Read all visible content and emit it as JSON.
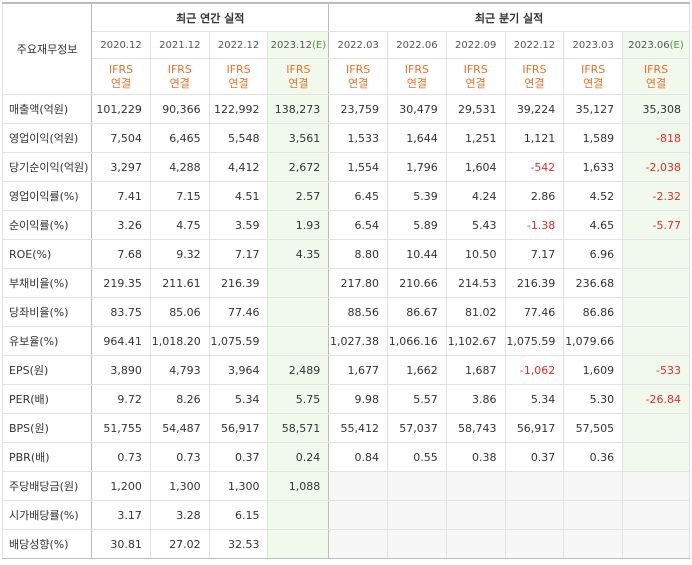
{
  "header": {
    "corner": "주요재무정보",
    "annual_title": "최근 연간 실적",
    "quarter_title": "최근 분기 실적",
    "periods": [
      {
        "date": "2020.12",
        "est": "",
        "acct": [
          "IFRS",
          "연결"
        ]
      },
      {
        "date": "2021.12",
        "est": "",
        "acct": [
          "IFRS",
          "연결"
        ]
      },
      {
        "date": "2022.12",
        "est": "",
        "acct": [
          "IFRS",
          "연결"
        ]
      },
      {
        "date": "2023.12",
        "est": "(E)",
        "acct": [
          "IFRS",
          "연결"
        ]
      },
      {
        "date": "2022.03",
        "est": "",
        "acct": [
          "IFRS",
          "연결"
        ]
      },
      {
        "date": "2022.06",
        "est": "",
        "acct": [
          "IFRS",
          "연결"
        ]
      },
      {
        "date": "2022.09",
        "est": "",
        "acct": [
          "IFRS",
          "연결"
        ]
      },
      {
        "date": "2022.12",
        "est": "",
        "acct": [
          "IFRS",
          "연결"
        ]
      },
      {
        "date": "2023.03",
        "est": "",
        "acct": [
          "IFRS",
          "연결"
        ]
      },
      {
        "date": "2023.06",
        "est": "(E)",
        "acct": [
          "IFRS",
          "연결"
        ]
      }
    ]
  },
  "rows": [
    {
      "label": "매출액(억원)",
      "values": [
        "101,229",
        "90,366",
        "122,992",
        "138,273",
        "23,759",
        "30,479",
        "29,531",
        "39,224",
        "35,127",
        "35,308"
      ]
    },
    {
      "label": "영업이익(억원)",
      "values": [
        "7,504",
        "6,465",
        "5,548",
        "3,561",
        "1,533",
        "1,644",
        "1,251",
        "1,121",
        "1,589",
        "-818"
      ]
    },
    {
      "label": "당기순이익(억원)",
      "values": [
        "3,297",
        "4,288",
        "4,412",
        "2,672",
        "1,554",
        "1,796",
        "1,604",
        "-542",
        "1,633",
        "-2,038"
      ]
    },
    {
      "label": "영업이익률(%)",
      "values": [
        "7.41",
        "7.15",
        "4.51",
        "2.57",
        "6.45",
        "5.39",
        "4.24",
        "2.86",
        "4.52",
        "-2.32"
      ]
    },
    {
      "label": "순이익률(%)",
      "values": [
        "3.26",
        "4.75",
        "3.59",
        "1.93",
        "6.54",
        "5.89",
        "5.43",
        "-1.38",
        "4.65",
        "-5.77"
      ]
    },
    {
      "label": "ROE(%)",
      "values": [
        "7.68",
        "9.32",
        "7.17",
        "4.35",
        "8.80",
        "10.44",
        "10.50",
        "7.17",
        "6.96",
        ""
      ]
    },
    {
      "label": "부채비율(%)",
      "values": [
        "219.35",
        "211.61",
        "216.39",
        "",
        "217.80",
        "210.66",
        "214.53",
        "216.39",
        "236.68",
        ""
      ]
    },
    {
      "label": "당좌비율(%)",
      "values": [
        "83.75",
        "85.06",
        "77.46",
        "",
        "88.56",
        "86.67",
        "81.02",
        "77.46",
        "86.86",
        ""
      ]
    },
    {
      "label": "유보율(%)",
      "values": [
        "964.41",
        "1,018.20",
        "1,075.59",
        "",
        "1,027.38",
        "1,066.16",
        "1,102.67",
        "1,075.59",
        "1,079.66",
        ""
      ]
    },
    {
      "label": "EPS(원)",
      "values": [
        "3,890",
        "4,793",
        "3,964",
        "2,489",
        "1,677",
        "1,662",
        "1,687",
        "-1,062",
        "1,609",
        "-533"
      ]
    },
    {
      "label": "PER(배)",
      "values": [
        "9.72",
        "8.26",
        "5.34",
        "5.75",
        "9.98",
        "5.57",
        "3.86",
        "5.34",
        "5.30",
        "-26.84"
      ]
    },
    {
      "label": "BPS(원)",
      "values": [
        "51,755",
        "54,487",
        "56,917",
        "58,571",
        "55,412",
        "57,037",
        "58,743",
        "56,917",
        "57,505",
        ""
      ]
    },
    {
      "label": "PBR(배)",
      "values": [
        "0.73",
        "0.73",
        "0.37",
        "0.24",
        "0.84",
        "0.55",
        "0.38",
        "0.37",
        "0.36",
        ""
      ]
    },
    {
      "label": "주당배당금(원)",
      "values": [
        "1,200",
        "1,300",
        "1,300",
        "1,088",
        "",
        "",
        "",
        "",
        "",
        ""
      ]
    },
    {
      "label": "시가배당률(%)",
      "values": [
        "3.17",
        "3.28",
        "6.15",
        "",
        "",
        "",
        "",
        "",
        "",
        ""
      ]
    },
    {
      "label": "배당성향(%)",
      "values": [
        "30.81",
        "27.02",
        "32.53",
        "",
        "",
        "",
        "",
        "",
        "",
        ""
      ]
    }
  ],
  "colors": {
    "estimate_bg": "#f1f9ec",
    "ifrs": "#e8702a",
    "negative": "#e52b2b",
    "estimate_mark": "#4a9b3a"
  }
}
